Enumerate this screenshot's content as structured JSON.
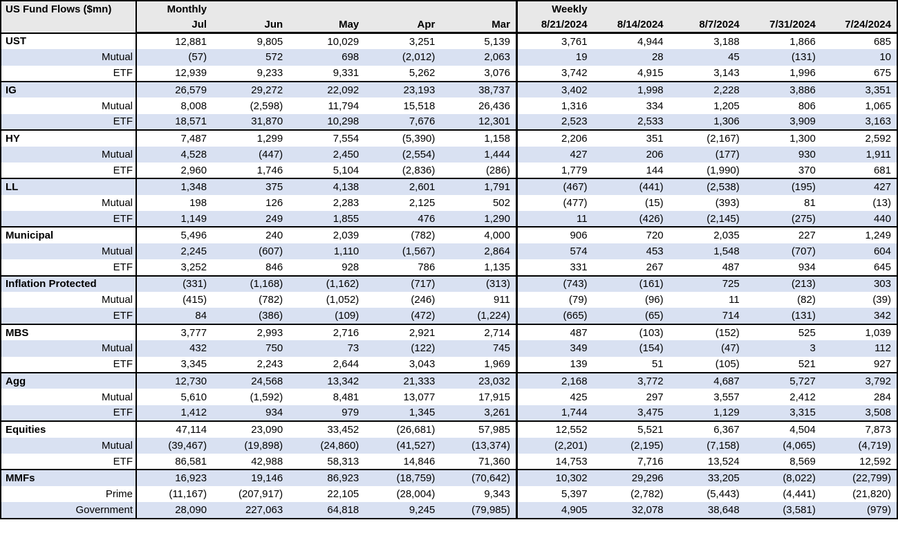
{
  "colors": {
    "row_band": "#d9e1f2",
    "header_bg": "#e8e8e8",
    "border": "#000000",
    "text": "#000000"
  },
  "chart_data": {
    "type": "table",
    "title": "US Fund Flows ($mn)",
    "units": "$mn",
    "column_groups": [
      {
        "label": "Monthly",
        "columns": [
          "Jul",
          "Jun",
          "May",
          "Apr",
          "Mar"
        ]
      },
      {
        "label": "Weekly",
        "columns": [
          "8/21/2024",
          "8/14/2024",
          "8/7/2024",
          "7/31/2024",
          "7/24/2024"
        ]
      }
    ],
    "rows": [
      {
        "label": "UST",
        "type": "section",
        "monthly": [
          "12,881",
          "9,805",
          "10,029",
          "3,251",
          "5,139"
        ],
        "weekly": [
          "3,761",
          "4,944",
          "3,188",
          "1,866",
          "685"
        ]
      },
      {
        "label": "Mutual",
        "type": "sub",
        "monthly": [
          "(57)",
          "572",
          "698",
          "(2,012)",
          "2,063"
        ],
        "weekly": [
          "19",
          "28",
          "45",
          "(131)",
          "10"
        ]
      },
      {
        "label": "ETF",
        "type": "sub",
        "monthly": [
          "12,939",
          "9,233",
          "9,331",
          "5,262",
          "3,076"
        ],
        "weekly": [
          "3,742",
          "4,915",
          "3,143",
          "1,996",
          "675"
        ]
      },
      {
        "label": "IG",
        "type": "section",
        "monthly": [
          "26,579",
          "29,272",
          "22,092",
          "23,193",
          "38,737"
        ],
        "weekly": [
          "3,402",
          "1,998",
          "2,228",
          "3,886",
          "3,351"
        ]
      },
      {
        "label": "Mutual",
        "type": "sub",
        "monthly": [
          "8,008",
          "(2,598)",
          "11,794",
          "15,518",
          "26,436"
        ],
        "weekly": [
          "1,316",
          "334",
          "1,205",
          "806",
          "1,065"
        ]
      },
      {
        "label": "ETF",
        "type": "sub",
        "monthly": [
          "18,571",
          "31,870",
          "10,298",
          "7,676",
          "12,301"
        ],
        "weekly": [
          "2,523",
          "2,533",
          "1,306",
          "3,909",
          "3,163"
        ]
      },
      {
        "label": "HY",
        "type": "section",
        "monthly": [
          "7,487",
          "1,299",
          "7,554",
          "(5,390)",
          "1,158"
        ],
        "weekly": [
          "2,206",
          "351",
          "(2,167)",
          "1,300",
          "2,592"
        ]
      },
      {
        "label": "Mutual",
        "type": "sub",
        "monthly": [
          "4,528",
          "(447)",
          "2,450",
          "(2,554)",
          "1,444"
        ],
        "weekly": [
          "427",
          "206",
          "(177)",
          "930",
          "1,911"
        ]
      },
      {
        "label": "ETF",
        "type": "sub",
        "monthly": [
          "2,960",
          "1,746",
          "5,104",
          "(2,836)",
          "(286)"
        ],
        "weekly": [
          "1,779",
          "144",
          "(1,990)",
          "370",
          "681"
        ]
      },
      {
        "label": "LL",
        "type": "section",
        "monthly": [
          "1,348",
          "375",
          "4,138",
          "2,601",
          "1,791"
        ],
        "weekly": [
          "(467)",
          "(441)",
          "(2,538)",
          "(195)",
          "427"
        ]
      },
      {
        "label": "Mutual",
        "type": "sub",
        "monthly": [
          "198",
          "126",
          "2,283",
          "2,125",
          "502"
        ],
        "weekly": [
          "(477)",
          "(15)",
          "(393)",
          "81",
          "(13)"
        ]
      },
      {
        "label": "ETF",
        "type": "sub",
        "monthly": [
          "1,149",
          "249",
          "1,855",
          "476",
          "1,290"
        ],
        "weekly": [
          "11",
          "(426)",
          "(2,145)",
          "(275)",
          "440"
        ]
      },
      {
        "label": "Municipal",
        "type": "section",
        "monthly": [
          "5,496",
          "240",
          "2,039",
          "(782)",
          "4,000"
        ],
        "weekly": [
          "906",
          "720",
          "2,035",
          "227",
          "1,249"
        ]
      },
      {
        "label": "Mutual",
        "type": "sub",
        "monthly": [
          "2,245",
          "(607)",
          "1,110",
          "(1,567)",
          "2,864"
        ],
        "weekly": [
          "574",
          "453",
          "1,548",
          "(707)",
          "604"
        ]
      },
      {
        "label": "ETF",
        "type": "sub",
        "monthly": [
          "3,252",
          "846",
          "928",
          "786",
          "1,135"
        ],
        "weekly": [
          "331",
          "267",
          "487",
          "934",
          "645"
        ]
      },
      {
        "label": "Inflation Protected",
        "type": "section",
        "monthly": [
          "(331)",
          "(1,168)",
          "(1,162)",
          "(717)",
          "(313)"
        ],
        "weekly": [
          "(743)",
          "(161)",
          "725",
          "(213)",
          "303"
        ]
      },
      {
        "label": "Mutual",
        "type": "sub",
        "monthly": [
          "(415)",
          "(782)",
          "(1,052)",
          "(246)",
          "911"
        ],
        "weekly": [
          "(79)",
          "(96)",
          "11",
          "(82)",
          "(39)"
        ]
      },
      {
        "label": "ETF",
        "type": "sub",
        "monthly": [
          "84",
          "(386)",
          "(109)",
          "(472)",
          "(1,224)"
        ],
        "weekly": [
          "(665)",
          "(65)",
          "714",
          "(131)",
          "342"
        ]
      },
      {
        "label": "MBS",
        "type": "section",
        "monthly": [
          "3,777",
          "2,993",
          "2,716",
          "2,921",
          "2,714"
        ],
        "weekly": [
          "487",
          "(103)",
          "(152)",
          "525",
          "1,039"
        ]
      },
      {
        "label": "Mutual",
        "type": "sub",
        "monthly": [
          "432",
          "750",
          "73",
          "(122)",
          "745"
        ],
        "weekly": [
          "349",
          "(154)",
          "(47)",
          "3",
          "112"
        ]
      },
      {
        "label": "ETF",
        "type": "sub",
        "monthly": [
          "3,345",
          "2,243",
          "2,644",
          "3,043",
          "1,969"
        ],
        "weekly": [
          "139",
          "51",
          "(105)",
          "521",
          "927"
        ]
      },
      {
        "label": "Agg",
        "type": "section",
        "monthly": [
          "12,730",
          "24,568",
          "13,342",
          "21,333",
          "23,032"
        ],
        "weekly": [
          "2,168",
          "3,772",
          "4,687",
          "5,727",
          "3,792"
        ]
      },
      {
        "label": "Mutual",
        "type": "sub",
        "monthly": [
          "5,610",
          "(1,592)",
          "8,481",
          "13,077",
          "17,915"
        ],
        "weekly": [
          "425",
          "297",
          "3,557",
          "2,412",
          "284"
        ]
      },
      {
        "label": "ETF",
        "type": "sub",
        "monthly": [
          "1,412",
          "934",
          "979",
          "1,345",
          "3,261"
        ],
        "weekly": [
          "1,744",
          "3,475",
          "1,129",
          "3,315",
          "3,508"
        ]
      },
      {
        "label": "Equities",
        "type": "section",
        "monthly": [
          "47,114",
          "23,090",
          "33,452",
          "(26,681)",
          "57,985"
        ],
        "weekly": [
          "12,552",
          "5,521",
          "6,367",
          "4,504",
          "7,873"
        ]
      },
      {
        "label": "Mutual",
        "type": "sub",
        "monthly": [
          "(39,467)",
          "(19,898)",
          "(24,860)",
          "(41,527)",
          "(13,374)"
        ],
        "weekly": [
          "(2,201)",
          "(2,195)",
          "(7,158)",
          "(4,065)",
          "(4,719)"
        ]
      },
      {
        "label": "ETF",
        "type": "sub",
        "monthly": [
          "86,581",
          "42,988",
          "58,313",
          "14,846",
          "71,360"
        ],
        "weekly": [
          "14,753",
          "7,716",
          "13,524",
          "8,569",
          "12,592"
        ]
      },
      {
        "label": "MMFs",
        "type": "section",
        "monthly": [
          "16,923",
          "19,146",
          "86,923",
          "(18,759)",
          "(70,642)"
        ],
        "weekly": [
          "10,302",
          "29,296",
          "33,205",
          "(8,022)",
          "(22,799)"
        ]
      },
      {
        "label": "Prime",
        "type": "sub",
        "monthly": [
          "(11,167)",
          "(207,917)",
          "22,105",
          "(28,004)",
          "9,343"
        ],
        "weekly": [
          "5,397",
          "(2,782)",
          "(5,443)",
          "(4,441)",
          "(21,820)"
        ]
      },
      {
        "label": "Government",
        "type": "sub",
        "monthly": [
          "28,090",
          "227,063",
          "64,818",
          "9,245",
          "(79,985)"
        ],
        "weekly": [
          "4,905",
          "32,078",
          "38,648",
          "(3,581)",
          "(979)"
        ]
      }
    ]
  }
}
